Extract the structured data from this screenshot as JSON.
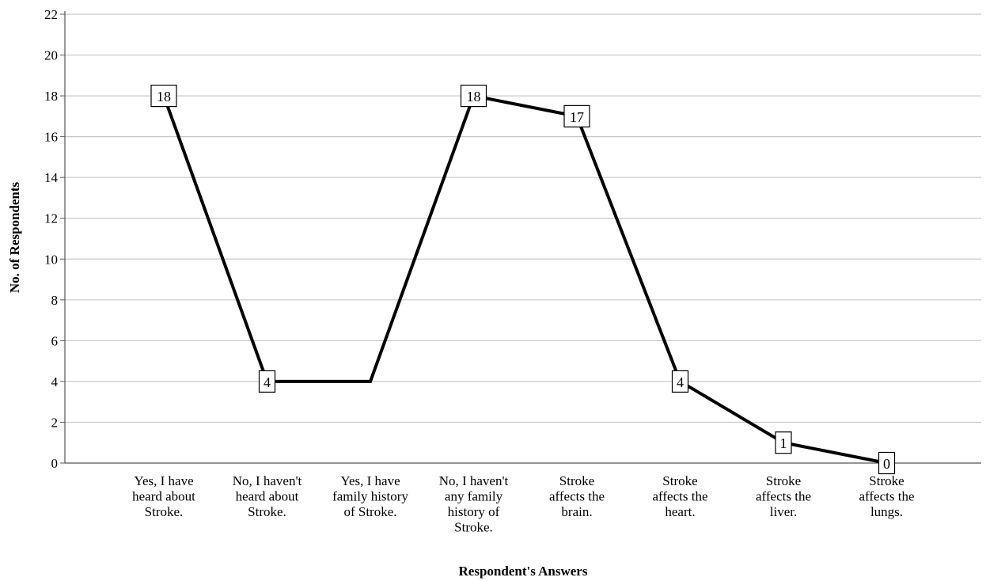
{
  "chart_data": {
    "type": "line",
    "categories": [
      [
        "Yes, I have",
        "heard about",
        "Stroke."
      ],
      [
        "No, I haven't",
        "heard about",
        "Stroke."
      ],
      [
        "Yes, I have",
        "family history",
        "of Stroke."
      ],
      [
        "No, I haven't",
        "any family",
        "history of",
        "Stroke."
      ],
      [
        "Stroke",
        "affects the",
        "brain."
      ],
      [
        "Stroke",
        "affects the",
        "heart."
      ],
      [
        "Stroke",
        "affects the",
        "liver."
      ],
      [
        "Stroke",
        "affects the",
        "lungs."
      ]
    ],
    "series": [
      {
        "values": [
          18,
          4,
          4,
          18,
          17,
          4,
          1,
          0
        ]
      }
    ],
    "point_labels": [
      "18",
      "4",
      "",
      "18",
      "17",
      "4",
      "1",
      "0"
    ],
    "xlabel": "Respondent's Answers",
    "ylabel": "No. of Respondents",
    "ylim": [
      0,
      22
    ],
    "yticks": [
      0,
      2,
      4,
      6,
      8,
      10,
      12,
      14,
      16,
      18,
      20,
      22
    ],
    "grid": "horizontal",
    "line_color": "#000000",
    "grid_color": "#c8c8c8"
  }
}
